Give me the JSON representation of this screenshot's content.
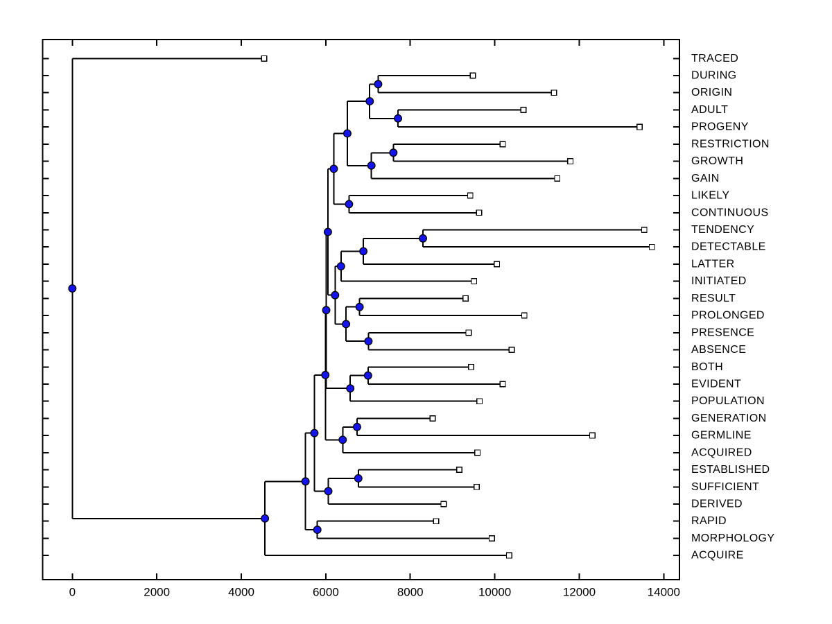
{
  "figure": {
    "background": "#ffffff",
    "title": ""
  },
  "axes": {
    "box": true,
    "line_color": "#000000",
    "x_tick_labels": [
      "0",
      "2000",
      "4000",
      "6000",
      "8000",
      "10000",
      "12000",
      "14000"
    ],
    "x_tick_values": [
      0,
      2000,
      4000,
      6000,
      8000,
      10000,
      12000,
      14000
    ],
    "xlim": [
      -700,
      14370
    ],
    "y_rows": 30
  },
  "chart_data": {
    "type": "dendrogram",
    "title": "",
    "xlabel": "",
    "ylabel": "",
    "orientation": "root at left, leaves at right",
    "legend": "none",
    "grid": false,
    "x_ticks": [
      0,
      2000,
      4000,
      6000,
      8000,
      10000,
      12000,
      14000
    ],
    "xlim": [
      -700,
      14370
    ],
    "leaf_order": [
      "TRACED",
      "DURING",
      "ORIGIN",
      "ADULT",
      "PROGENY",
      "RESTRICTION",
      "GROWTH",
      "GAIN",
      "LIKELY",
      "CONTINUOUS",
      "TENDENCY",
      "DETECTABLE",
      "LATTER",
      "INITIATED",
      "RESULT",
      "PROLONGED",
      "PRESENCE",
      "ABSENCE",
      "BOTH",
      "EVIDENT",
      "POPULATION",
      "GENERATION",
      "GERMLINE",
      "ACQUIRED",
      "ESTABLISHED",
      "SUFFICIENT",
      "DERIVED",
      "RAPID",
      "MORPHOLOGY",
      "ACQUIRE"
    ],
    "leaf_x": {
      "TRACED": 4540,
      "DURING": 9480,
      "ORIGIN": 11400,
      "ADULT": 10680,
      "PROGENY": 13430,
      "RESTRICTION": 10190,
      "GROWTH": 11790,
      "GAIN": 11480,
      "LIKELY": 9420,
      "CONTINUOUS": 9630,
      "TENDENCY": 13540,
      "DETECTABLE": 13720,
      "LATTER": 10050,
      "INITIATED": 9510,
      "RESULT": 9310,
      "PROLONGED": 10700,
      "PRESENCE": 9380,
      "ABSENCE": 10400,
      "BOTH": 9440,
      "EVIDENT": 10190,
      "POPULATION": 9640,
      "GENERATION": 8530,
      "GERMLINE": 12310,
      "ACQUIRED": 9590,
      "ESTABLISHED": 9160,
      "SUFFICIENT": 9570,
      "DERIVED": 8790,
      "RAPID": 8610,
      "MORPHOLOGY": 9930,
      "ACQUIRE": 10340
    },
    "tree": {
      "x": 0,
      "children": [
        {
          "leaf": "TRACED"
        },
        {
          "x": 4560,
          "children": [
            {
              "x": 5520,
              "children": [
                {
                  "x": 5730,
                  "children": [
                    {
                      "x": 5990,
                      "children": [
                        {
                          "x": 6010,
                          "children": [
                            {
                              "x": 6050,
                              "children": [
                                {
                                  "x": 6190,
                                  "children": [
                                    {
                                      "x": 6510,
                                      "children": [
                                        {
                                          "x": 7040,
                                          "children": [
                                            {
                                              "x": 7240,
                                              "children": [
                                                {
                                                  "leaf": "DURING"
                                                },
                                                {
                                                  "leaf": "ORIGIN"
                                                }
                                              ]
                                            },
                                            {
                                              "x": 7710,
                                              "children": [
                                                {
                                                  "leaf": "ADULT"
                                                },
                                                {
                                                  "leaf": "PROGENY"
                                                }
                                              ]
                                            }
                                          ]
                                        },
                                        {
                                          "x": 7080,
                                          "children": [
                                            {
                                              "x": 7600,
                                              "children": [
                                                {
                                                  "leaf": "RESTRICTION"
                                                },
                                                {
                                                  "leaf": "GROWTH"
                                                }
                                              ]
                                            },
                                            {
                                              "leaf": "GAIN"
                                            }
                                          ]
                                        }
                                      ]
                                    },
                                    {
                                      "x": 6550,
                                      "children": [
                                        {
                                          "leaf": "LIKELY"
                                        },
                                        {
                                          "leaf": "CONTINUOUS"
                                        }
                                      ]
                                    }
                                  ]
                                },
                                {
                                  "x": 6220,
                                  "children": [
                                    {
                                      "x": 6360,
                                      "children": [
                                        {
                                          "x": 6890,
                                          "children": [
                                            {
                                              "x": 8300,
                                              "children": [
                                                {
                                                  "leaf": "TENDENCY"
                                                },
                                                {
                                                  "leaf": "DETECTABLE"
                                                }
                                              ]
                                            },
                                            {
                                              "leaf": "LATTER"
                                            }
                                          ]
                                        },
                                        {
                                          "leaf": "INITIATED"
                                        }
                                      ]
                                    },
                                    {
                                      "x": 6480,
                                      "children": [
                                        {
                                          "x": 6800,
                                          "children": [
                                            {
                                              "leaf": "RESULT"
                                            },
                                            {
                                              "leaf": "PROLONGED"
                                            }
                                          ]
                                        },
                                        {
                                          "x": 7010,
                                          "children": [
                                            {
                                              "leaf": "PRESENCE"
                                            },
                                            {
                                              "leaf": "ABSENCE"
                                            }
                                          ]
                                        }
                                      ]
                                    }
                                  ]
                                }
                              ]
                            },
                            {
                              "x": 6580,
                              "children": [
                                {
                                  "x": 7000,
                                  "children": [
                                    {
                                      "leaf": "BOTH"
                                    },
                                    {
                                      "leaf": "EVIDENT"
                                    }
                                  ]
                                },
                                {
                                  "leaf": "POPULATION"
                                }
                              ]
                            }
                          ]
                        },
                        {
                          "x": 6400,
                          "children": [
                            {
                              "x": 6740,
                              "children": [
                                {
                                  "leaf": "GENERATION"
                                },
                                {
                                  "leaf": "GERMLINE"
                                }
                              ]
                            },
                            {
                              "leaf": "ACQUIRED"
                            }
                          ]
                        }
                      ]
                    },
                    {
                      "x": 6060,
                      "children": [
                        {
                          "x": 6770,
                          "children": [
                            {
                              "leaf": "ESTABLISHED"
                            },
                            {
                              "leaf": "SUFFICIENT"
                            }
                          ]
                        },
                        {
                          "leaf": "DERIVED"
                        }
                      ]
                    }
                  ]
                },
                {
                  "x": 5800,
                  "children": [
                    {
                      "leaf": "RAPID"
                    },
                    {
                      "leaf": "MORPHOLOGY"
                    }
                  ]
                }
              ]
            },
            {
              "leaf": "ACQUIRE"
            }
          ]
        }
      ]
    },
    "colors": {
      "branch": "#000000",
      "internal_node_fill": "#1414f0",
      "internal_node_edge": "#000000",
      "leaf_marker_fill": "#ffffff",
      "leaf_marker_edge": "#000000",
      "text": "#000000"
    }
  }
}
